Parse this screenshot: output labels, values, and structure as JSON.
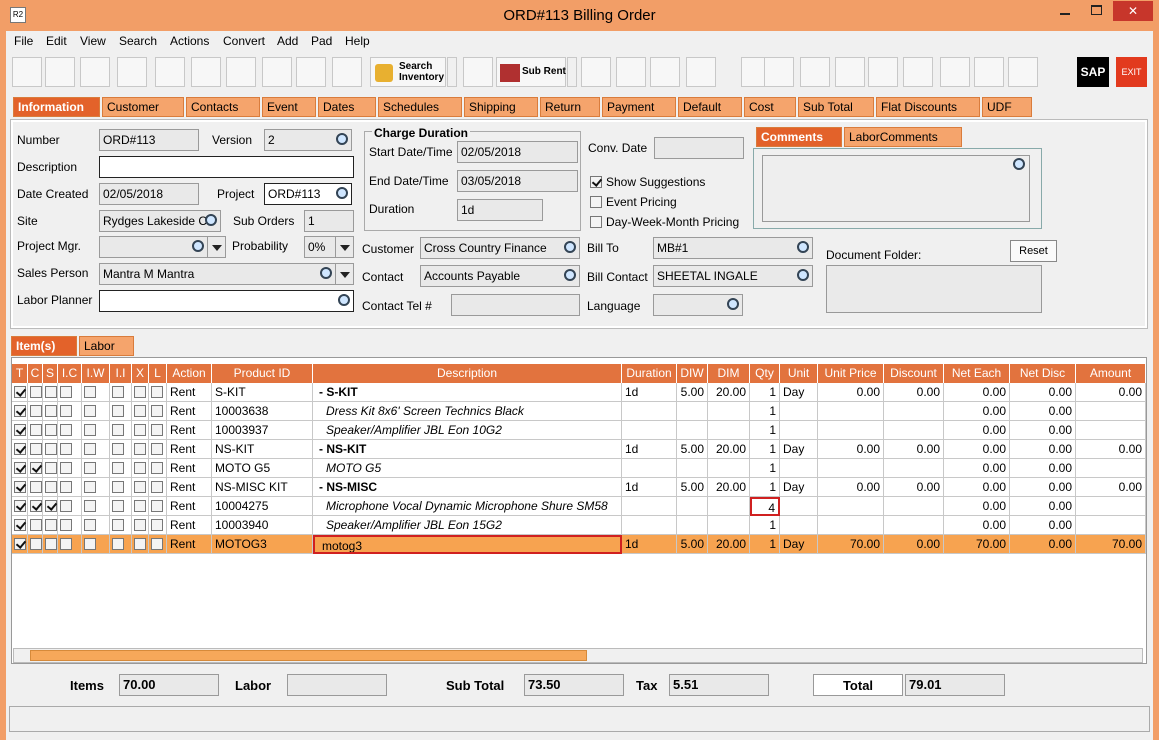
{
  "window": {
    "title": "ORD#113 Billing Order"
  },
  "menu": [
    "File",
    "Edit",
    "View",
    "Search",
    "Actions",
    "Convert",
    "Add",
    "Pad",
    "Help"
  ],
  "toolbar": {
    "search_inventory": [
      "Search",
      "Inventory"
    ],
    "sub_rent": "Sub Rent",
    "sap": "SAP",
    "exit": "EXIT"
  },
  "tabs": [
    "Information",
    "Customer",
    "Contacts",
    "Event",
    "Dates",
    "Schedules",
    "Shipping",
    "Return",
    "Payment",
    "Default",
    "Cost",
    "Sub Total",
    "Flat Discounts",
    "UDF"
  ],
  "charge_duration": "Charge Duration",
  "fields": [
    {
      "label": "Number",
      "value": "ORD#113"
    },
    {
      "label": "Version",
      "value": "2"
    },
    {
      "label": "Description"
    },
    {
      "label": "Date Created",
      "value": "02/05/2018"
    },
    {
      "label": "Project",
      "value": "ORD#113"
    },
    {
      "label": "Site",
      "value": "Rydges Lakeside Ca"
    },
    {
      "label": "Sub Orders",
      "value": "1"
    },
    {
      "label": "Project Mgr."
    },
    {
      "label": "Probability",
      "value": "0%"
    },
    {
      "label": "Sales Person",
      "value": "Mantra M Mantra"
    },
    {
      "label": "Labor Planner"
    },
    {
      "label": "Start Date/Time",
      "value": "02/05/2018"
    },
    {
      "label": "End Date/Time",
      "value": "03/05/2018"
    },
    {
      "label": "Duration",
      "value": "1d"
    },
    {
      "label": "Conv. Date"
    },
    {
      "label": "Customer",
      "value": "Cross Country Finance"
    },
    {
      "label": "Contact",
      "value": "Accounts Payable"
    },
    {
      "label": "Contact Tel #"
    },
    {
      "label": "Bill To",
      "value": "MB#1"
    },
    {
      "label": "Bill Contact",
      "value": "SHEETAL INGALE"
    },
    {
      "label": "Language"
    }
  ],
  "options": [
    {
      "label": "Show Suggestions",
      "checked": true
    },
    {
      "label": "Event Pricing",
      "checked": false
    },
    {
      "label": "Day-Week-Month Pricing",
      "checked": false
    }
  ],
  "comment_tabs": [
    "Comments",
    "LaborComments"
  ],
  "document_folder": "Document Folder:",
  "reset": "Reset",
  "item_tabs": [
    "Item(s)",
    "Labor"
  ],
  "table": {
    "columns": [
      "T",
      "C",
      "S",
      "I.C",
      "I.W",
      "I.I",
      "X",
      "L",
      "Action",
      "Product ID",
      "Description",
      "Duration",
      "DIW",
      "DIM",
      "Qty",
      "Unit",
      "Unit Price",
      "Discount",
      "Net Each",
      "Net Disc",
      "Amount"
    ],
    "selected_row": 8,
    "rows": [
      {
        "kind": "kit",
        "checks": [
          true,
          false,
          false,
          false,
          false,
          false,
          false,
          false
        ],
        "cells": [
          "Rent",
          "S-KIT",
          "- S-KIT",
          "1d",
          "5.00",
          "20.00",
          "1",
          "Day",
          "0.00",
          "0.00",
          "0.00",
          "0.00",
          "0.00"
        ]
      },
      {
        "kind": "component",
        "checks": [
          true,
          false,
          false,
          false,
          false,
          false,
          false,
          false
        ],
        "cells": [
          "Rent",
          "10003638",
          "Dress Kit 8x6' Screen Technics Black",
          null,
          null,
          null,
          "1",
          null,
          null,
          null,
          "0.00",
          "0.00",
          null
        ]
      },
      {
        "kind": "component",
        "checks": [
          true,
          false,
          false,
          false,
          false,
          false,
          false,
          false
        ],
        "cells": [
          "Rent",
          "10003937",
          "Speaker/Amplifier JBL Eon 10G2",
          null,
          null,
          null,
          "1",
          null,
          null,
          null,
          "0.00",
          "0.00",
          null
        ]
      },
      {
        "kind": "kit",
        "checks": [
          true,
          false,
          false,
          false,
          false,
          false,
          false,
          false
        ],
        "cells": [
          "Rent",
          "NS-KIT",
          "- NS-KIT",
          "1d",
          "5.00",
          "20.00",
          "1",
          "Day",
          "0.00",
          "0.00",
          "0.00",
          "0.00",
          "0.00"
        ]
      },
      {
        "kind": "component",
        "checks": [
          true,
          true,
          false,
          false,
          false,
          false,
          false,
          false
        ],
        "cells": [
          "Rent",
          "MOTO G5",
          "MOTO G5",
          null,
          null,
          null,
          "1",
          null,
          null,
          null,
          "0.00",
          "0.00",
          null
        ]
      },
      {
        "kind": "kit",
        "checks": [
          true,
          false,
          false,
          false,
          false,
          false,
          false,
          false
        ],
        "cells": [
          "Rent",
          "NS-MISC KIT",
          "- NS-MISC",
          "1d",
          "5.00",
          "20.00",
          "1",
          "Day",
          "0.00",
          "0.00",
          "0.00",
          "0.00",
          "0.00"
        ]
      },
      {
        "kind": "component",
        "checks": [
          true,
          true,
          true,
          false,
          false,
          false,
          false,
          false
        ],
        "cells": [
          "Rent",
          "10004275",
          "Microphone Vocal Dynamic Microphone Shure SM58",
          null,
          null,
          null,
          "4",
          null,
          null,
          null,
          "0.00",
          "0.00",
          null
        ]
      },
      {
        "kind": "component",
        "checks": [
          true,
          false,
          false,
          false,
          false,
          false,
          false,
          false
        ],
        "cells": [
          "Rent",
          "10003940",
          "Speaker/Amplifier JBL Eon 15G2",
          null,
          null,
          null,
          "1",
          null,
          null,
          null,
          "0.00",
          "0.00",
          null
        ]
      },
      {
        "kind": "item",
        "checks": [
          true,
          false,
          false,
          false,
          false,
          false,
          false,
          false
        ],
        "cells": [
          "Rent",
          "MOTOG3",
          "motog3",
          "1d",
          "5.00",
          "20.00",
          "1",
          "Day",
          "70.00",
          "0.00",
          "70.00",
          "0.00",
          "70.00"
        ]
      }
    ]
  },
  "totals": [
    {
      "label": "Items",
      "value": "70.00"
    },
    {
      "label": "Labor"
    },
    {
      "label": "Sub Total",
      "value": "73.50"
    },
    {
      "label": "Tax",
      "value": "5.51"
    },
    {
      "label": "Total",
      "value": "79.01"
    }
  ]
}
